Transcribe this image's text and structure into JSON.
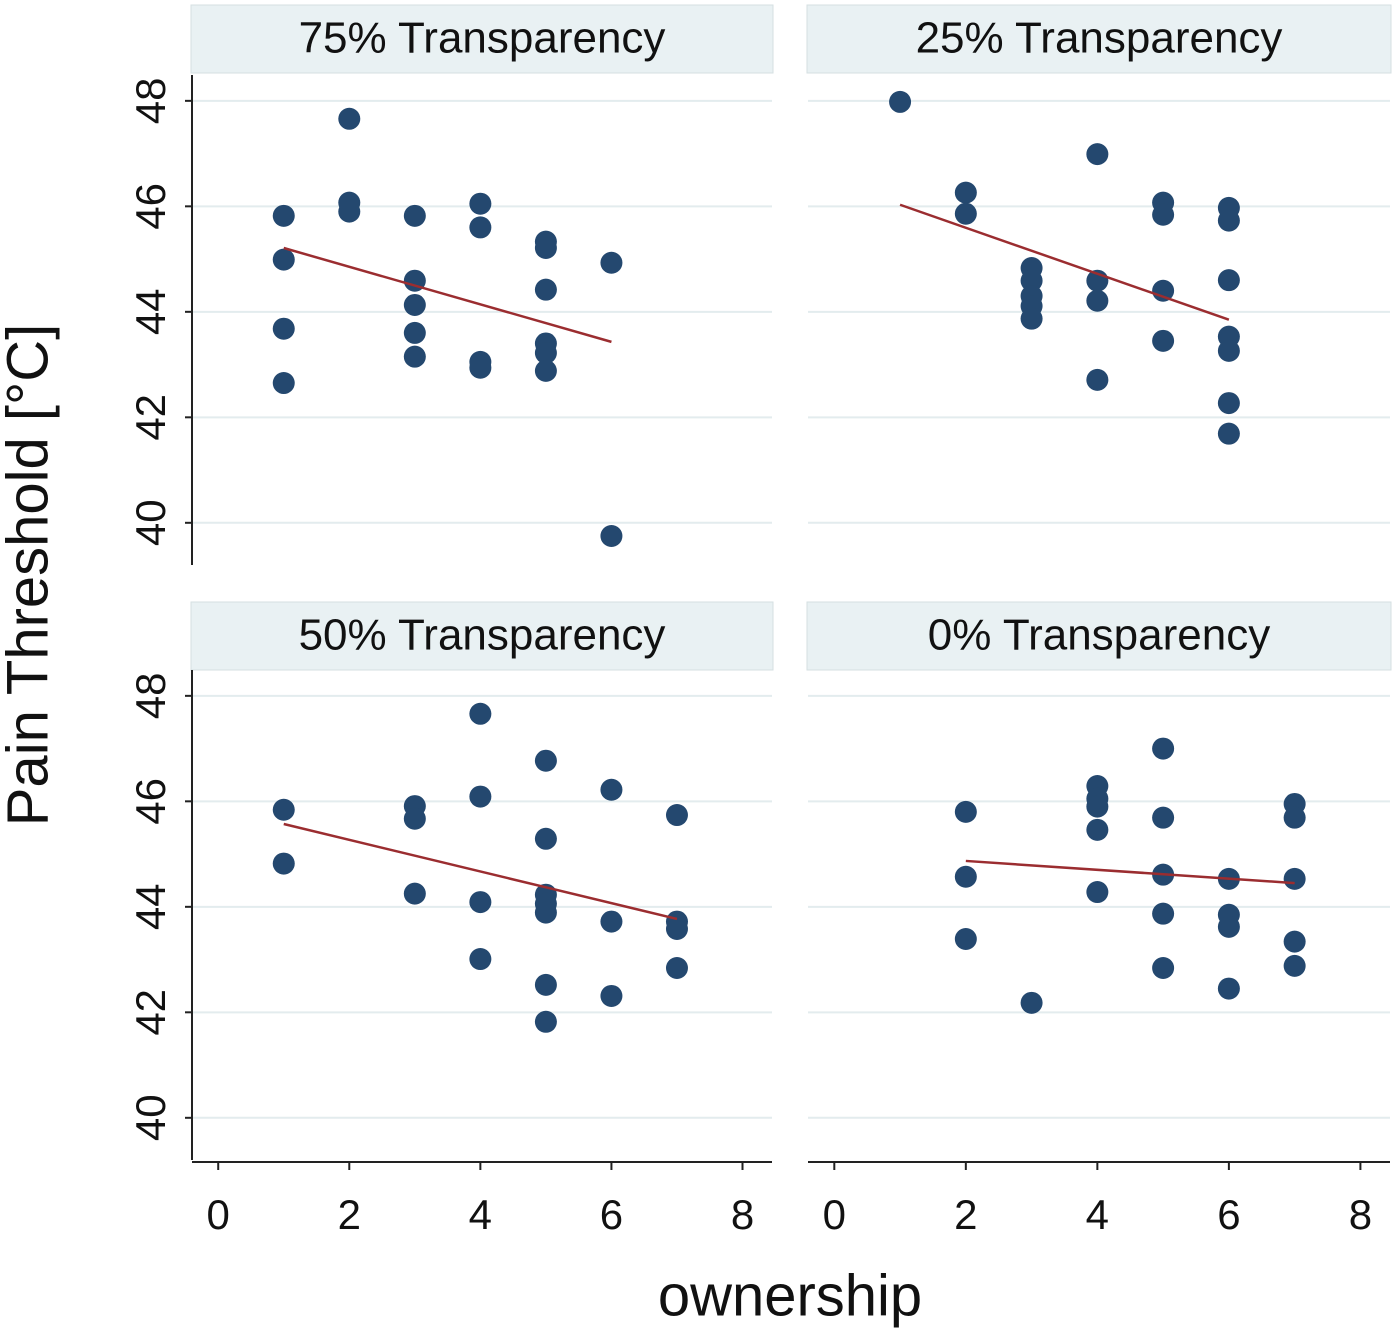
{
  "ylabel": "Pain Threshold [°C]",
  "xlabel": "ownership",
  "chart_data": [
    {
      "type": "scatter",
      "title": "75% Transparency",
      "color": "#24486f",
      "x": [
        1,
        1,
        1,
        1,
        2,
        2,
        2,
        3,
        3,
        3,
        3,
        3,
        4,
        4,
        4,
        4,
        5,
        5,
        5,
        5,
        5,
        5,
        6,
        6
      ],
      "values": [
        45.82,
        44.99,
        43.68,
        42.65,
        47.66,
        46.07,
        45.9,
        45.82,
        44.59,
        44.13,
        43.6,
        43.15,
        46.05,
        45.6,
        43.05,
        42.94,
        45.33,
        45.21,
        44.42,
        43.4,
        43.22,
        42.88,
        44.93,
        39.75
      ],
      "fit": {
        "color": "#9b2d30",
        "x": [
          1,
          6
        ],
        "values": [
          45.21,
          43.43
        ]
      },
      "xlim": [
        -0.4,
        8.45
      ],
      "ylim": [
        39.2,
        48.49
      ],
      "yticks": [
        40,
        42,
        44,
        46,
        48
      ],
      "grid": true
    },
    {
      "type": "scatter",
      "title": "25% Transparency",
      "color": "#24486f",
      "x": [
        1,
        2,
        2,
        3,
        3,
        3,
        3,
        3,
        4,
        4,
        4,
        4,
        5,
        5,
        5,
        5,
        6,
        6,
        6,
        6,
        6,
        6,
        6
      ],
      "values": [
        47.98,
        46.26,
        45.86,
        44.83,
        44.59,
        44.3,
        44.11,
        43.87,
        46.99,
        44.59,
        44.21,
        42.71,
        46.07,
        45.84,
        44.4,
        43.45,
        45.97,
        45.73,
        44.6,
        43.53,
        43.26,
        42.27,
        41.69
      ],
      "fit": {
        "color": "#9b2d30",
        "x": [
          1,
          6
        ],
        "values": [
          46.03,
          43.85
        ]
      },
      "xlim": [
        -0.4,
        8.45
      ],
      "ylim": [
        39.2,
        48.49
      ],
      "yticks": [
        40,
        42,
        44,
        46,
        48
      ],
      "grid": true
    },
    {
      "type": "scatter",
      "title": "50% Transparency",
      "color": "#24486f",
      "x": [
        1,
        1,
        3,
        3,
        3,
        4,
        4,
        4,
        4,
        5,
        5,
        5,
        5,
        5,
        5,
        5,
        6,
        6,
        6,
        7,
        7,
        7,
        7
      ],
      "values": [
        45.84,
        44.82,
        45.91,
        45.67,
        44.25,
        47.66,
        46.09,
        44.09,
        43.01,
        46.77,
        45.29,
        44.23,
        44.06,
        43.89,
        42.52,
        41.82,
        46.22,
        43.72,
        42.31,
        45.74,
        43.72,
        43.58,
        42.84
      ],
      "fit": {
        "color": "#9b2d30",
        "x": [
          1,
          7
        ],
        "values": [
          45.57,
          43.77
        ]
      },
      "xlim": [
        -0.4,
        8.45
      ],
      "ylim": [
        39.2,
        48.49
      ],
      "xticks": [
        0,
        2,
        4,
        6,
        8
      ],
      "yticks": [
        40,
        42,
        44,
        46,
        48
      ],
      "grid": true
    },
    {
      "type": "scatter",
      "title": "0% Transparency",
      "color": "#24486f",
      "x": [
        2,
        2,
        2,
        3,
        4,
        4,
        4,
        4,
        4,
        5,
        5,
        5,
        5,
        5,
        6,
        6,
        6,
        6,
        7,
        7,
        7,
        7,
        7
      ],
      "values": [
        45.8,
        44.57,
        43.39,
        42.18,
        46.29,
        46.05,
        45.9,
        45.46,
        44.28,
        47.0,
        45.69,
        44.61,
        43.87,
        42.84,
        44.53,
        43.85,
        43.62,
        42.45,
        45.95,
        45.69,
        44.53,
        43.34,
        42.88
      ],
      "fit": {
        "color": "#9b2d30",
        "x": [
          2,
          7
        ],
        "values": [
          44.87,
          44.45
        ]
      },
      "xlim": [
        -0.4,
        8.45
      ],
      "ylim": [
        39.2,
        48.49
      ],
      "xticks": [
        0,
        2,
        4,
        6,
        8
      ],
      "yticks": [
        40,
        42,
        44,
        46,
        48
      ],
      "grid": true
    }
  ]
}
